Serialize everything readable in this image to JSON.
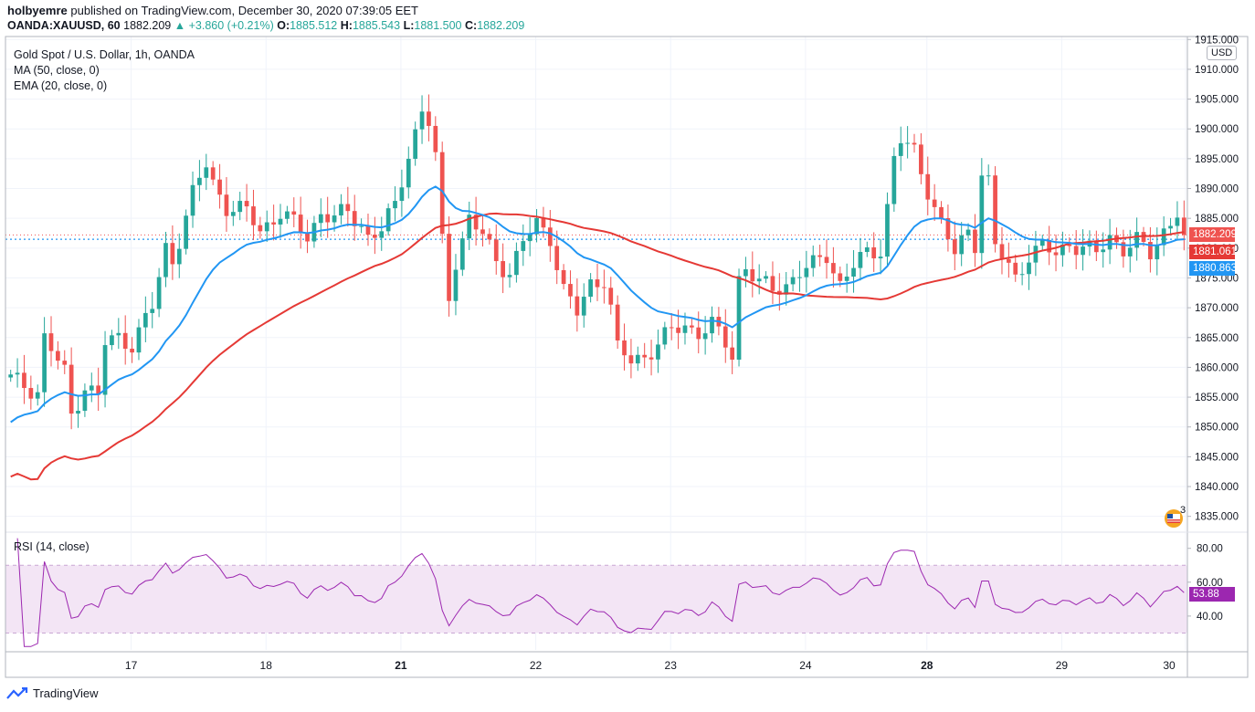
{
  "header": {
    "publisher": "holbyemre",
    "published_text": "published on TradingView.com, December 30, 2020 07:39:05 EET",
    "symbol": "OANDA:XAUUSD, 60",
    "last": "1882.209",
    "change": "+3.860 (+0.21%)",
    "o_label": "O:",
    "o_value": "1885.512",
    "h_label": "H:",
    "h_value": "1885.543",
    "l_label": "L:",
    "l_value": "1881.500",
    "c_label": "C:",
    "c_value": "1882.209"
  },
  "legend": {
    "title": "Gold Spot / U.S. Dollar, 1h, OANDA",
    "ma": "MA (50, close, 0)",
    "ema": "EMA (20, close, 0)"
  },
  "rsi_label": "RSI (14, close)",
  "currency": "USD",
  "price_tags": {
    "last": "1882.209",
    "ma": "1881.061",
    "ema": "1880.863"
  },
  "rsi_tag": "53.88",
  "event_count": "3",
  "footer": {
    "brand": "TradingView"
  },
  "colors": {
    "up": "#26a69a",
    "down": "#ef5350",
    "ma": "#e53935",
    "ema": "#2196f3",
    "rsi": "#9c27b0",
    "rsi_band": "#f3e5f5"
  },
  "chart_data": [
    {
      "type": "candlestick",
      "title": "Gold Spot / U.S. Dollar, 1h, OANDA",
      "x_ticks": [
        "17",
        "18",
        "21",
        "22",
        "23",
        "24",
        "28",
        "29",
        "30"
      ],
      "bold_x_ticks": [
        "21",
        "28"
      ],
      "y_ticks": [
        "1835.000",
        "1840.000",
        "1845.000",
        "1850.000",
        "1855.000",
        "1860.000",
        "1865.000",
        "1870.000",
        "1875.000",
        "1880.000",
        "1885.000",
        "1890.000",
        "1895.000",
        "1900.000",
        "1905.000",
        "1910.000",
        "1915.000"
      ],
      "ylim": [
        1832.5,
        1915.5
      ],
      "bar_count": 175,
      "ohlc_knots": [
        [
          0,
          1858
        ],
        [
          4,
          1856
        ],
        [
          5,
          1865
        ],
        [
          8,
          1859
        ],
        [
          9,
          1852
        ],
        [
          11,
          1857
        ],
        [
          13,
          1855
        ],
        [
          14,
          1864
        ],
        [
          16,
          1865
        ],
        [
          18,
          1864
        ],
        [
          19,
          1866
        ],
        [
          21,
          1870
        ],
        [
          23,
          1880
        ],
        [
          24,
          1878
        ],
        [
          27,
          1889
        ],
        [
          29,
          1894
        ],
        [
          30,
          1891
        ],
        [
          32,
          1887
        ],
        [
          35,
          1886
        ],
        [
          37,
          1883
        ],
        [
          40,
          1886
        ],
        [
          42,
          1884
        ],
        [
          44,
          1882
        ],
        [
          46,
          1886
        ],
        [
          48,
          1885
        ],
        [
          50,
          1886
        ],
        [
          52,
          1884
        ],
        [
          53,
          1882
        ],
        [
          55,
          1883
        ],
        [
          57,
          1887
        ],
        [
          59,
          1896
        ],
        [
          61,
          1903
        ],
        [
          62,
          1901
        ],
        [
          63,
          1895
        ],
        [
          64,
          1881
        ],
        [
          65,
          1872
        ],
        [
          66,
          1878
        ],
        [
          68,
          1885
        ],
        [
          70,
          1882
        ],
        [
          72,
          1878
        ],
        [
          74,
          1876
        ],
        [
          76,
          1881
        ],
        [
          78,
          1884
        ],
        [
          80,
          1882
        ],
        [
          82,
          1873
        ],
        [
          84,
          1869
        ],
        [
          86,
          1874
        ],
        [
          88,
          1875
        ],
        [
          89,
          1870
        ],
        [
          90,
          1863
        ],
        [
          92,
          1861
        ],
        [
          94,
          1862
        ],
        [
          96,
          1864
        ],
        [
          98,
          1866
        ],
        [
          100,
          1867
        ],
        [
          102,
          1866
        ],
        [
          104,
          1867
        ],
        [
          106,
          1864
        ],
        [
          107,
          1862
        ],
        [
          108,
          1875
        ],
        [
          109,
          1877
        ],
        [
          111,
          1874
        ],
        [
          113,
          1873
        ],
        [
          115,
          1874
        ],
        [
          117,
          1876
        ],
        [
          119,
          1877
        ],
        [
          121,
          1879
        ],
        [
          123,
          1874
        ],
        [
          125,
          1877
        ],
        [
          127,
          1879
        ],
        [
          129,
          1880
        ],
        [
          130,
          1887
        ],
        [
          131,
          1895
        ],
        [
          132,
          1898
        ],
        [
          134,
          1896
        ],
        [
          136,
          1890
        ],
        [
          138,
          1884
        ],
        [
          140,
          1879
        ],
        [
          142,
          1883
        ],
        [
          143,
          1881
        ],
        [
          144,
          1893
        ],
        [
          145,
          1891
        ],
        [
          146,
          1880
        ],
        [
          148,
          1877
        ],
        [
          149,
          1875
        ],
        [
          151,
          1879
        ],
        [
          153,
          1880
        ],
        [
          155,
          1879
        ],
        [
          157,
          1881
        ],
        [
          159,
          1880
        ],
        [
          161,
          1879
        ],
        [
          163,
          1882
        ],
        [
          165,
          1880
        ],
        [
          167,
          1881
        ],
        [
          169,
          1879
        ],
        [
          171,
          1883
        ],
        [
          173,
          1886
        ],
        [
          174,
          1882.2
        ]
      ],
      "series": [
        {
          "name": "MA (50, close, 0)",
          "color": "#e53935"
        },
        {
          "name": "EMA (20, close, 0)",
          "color": "#2196f3"
        }
      ],
      "last_price": 1882.209
    },
    {
      "type": "line",
      "title": "RSI (14, close)",
      "y_ticks": [
        "40.00",
        "60.00",
        "80.00"
      ],
      "ylim": [
        20,
        89
      ],
      "band": [
        30,
        70
      ],
      "values_source": "computed from closes with 14-period RSI",
      "last_value": 53.88
    }
  ]
}
